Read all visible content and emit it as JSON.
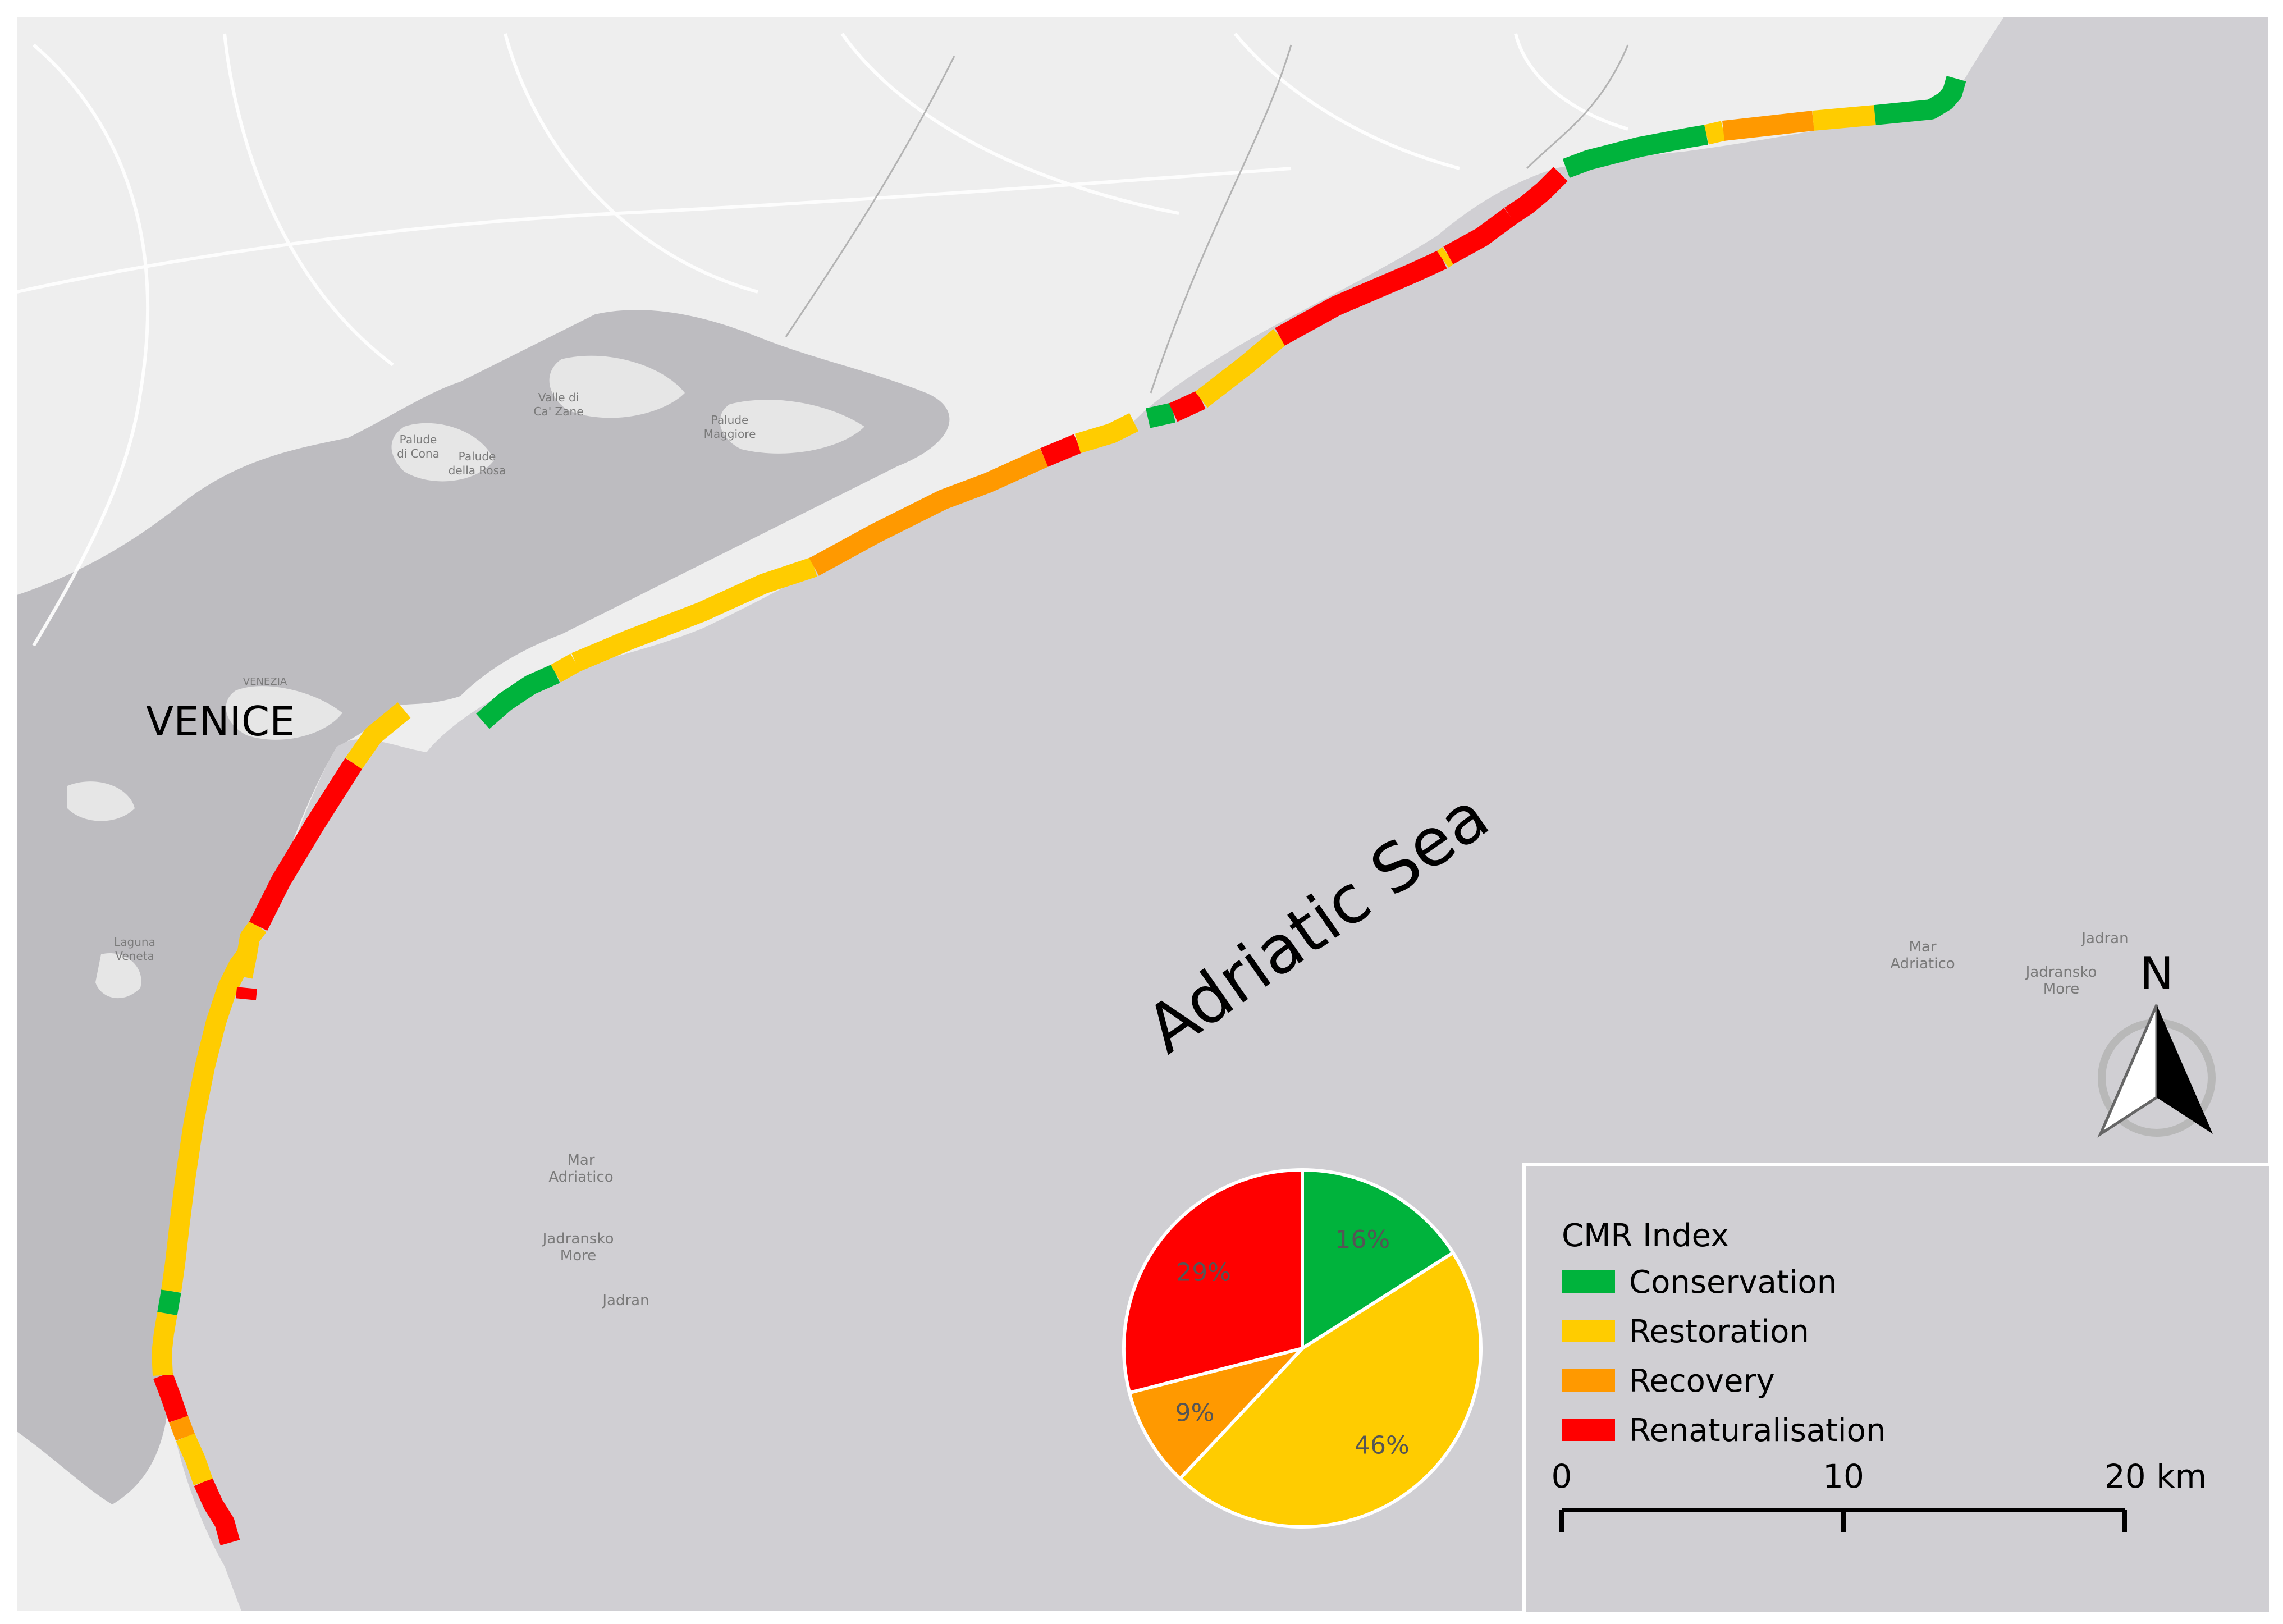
{
  "map": {
    "city_label": "VENICE",
    "sea_label": "Adriatic Sea",
    "north_label": "N",
    "place_labels": [
      {
        "text": "Mar"
      },
      {
        "text": "Adriatico"
      },
      {
        "text": "Jadransko"
      },
      {
        "text": "More"
      },
      {
        "text": "Jadran"
      },
      {
        "text": "Mar"
      },
      {
        "text": "Adriatico"
      },
      {
        "text": "Jadransko"
      },
      {
        "text": "More"
      },
      {
        "text": "Jadran"
      },
      {
        "text": "VENEZIA"
      },
      {
        "text": "Valle di"
      },
      {
        "text": "Ca' Zane"
      },
      {
        "text": "Palude"
      },
      {
        "text": "Maggiore"
      },
      {
        "text": "Palude"
      },
      {
        "text": "di Cona"
      },
      {
        "text": "Palude"
      },
      {
        "text": "della Rosa"
      },
      {
        "text": "Laguna"
      },
      {
        "text": "Veneta"
      }
    ]
  },
  "colors": {
    "sea": "#d0cfd3",
    "land": "#eeeeee",
    "lagoon": "#bdbcc0",
    "conservation": "#00b33c",
    "restoration": "#ffcc00",
    "recovery": "#ff9900",
    "renaturalisation": "#ff0000"
  },
  "legend": {
    "title": "CMR Index",
    "items": [
      {
        "label": "Conservation",
        "color": "#00b33c"
      },
      {
        "label": "Restoration",
        "color": "#ffcc00"
      },
      {
        "label": "Recovery",
        "color": "#ff9900"
      },
      {
        "label": "Renaturalisation",
        "color": "#ff0000"
      }
    ]
  },
  "scale_bar": {
    "labels": [
      "0",
      "10",
      "20 km"
    ]
  },
  "chart_data": {
    "type": "pie",
    "slices": [
      {
        "label": "Conservation",
        "value": 16,
        "display": "16%",
        "color": "#00b33c"
      },
      {
        "label": "Restoration",
        "value": 46,
        "display": "46%",
        "color": "#ffcc00"
      },
      {
        "label": "Recovery",
        "value": 9,
        "display": "9%",
        "color": "#ff9900"
      },
      {
        "label": "Renaturalisation",
        "value": 29,
        "display": "29%",
        "color": "#ff0000"
      }
    ]
  },
  "coast_segments": [
    {
      "class": "renaturalisation"
    },
    {
      "class": "restoration"
    },
    {
      "class": "recovery"
    },
    {
      "class": "renaturalisation"
    },
    {
      "class": "restoration"
    },
    {
      "class": "conservation"
    },
    {
      "class": "restoration"
    },
    {
      "class": "renaturalisation"
    },
    {
      "class": "restoration"
    },
    {
      "class": "renaturalisation"
    },
    {
      "class": "restoration"
    },
    {
      "class": "conservation"
    },
    {
      "class": "restoration"
    },
    {
      "class": "restoration"
    },
    {
      "class": "recovery"
    },
    {
      "class": "renaturalisation"
    },
    {
      "class": "restoration"
    },
    {
      "class": "conservation"
    },
    {
      "class": "renaturalisation"
    },
    {
      "class": "restoration"
    },
    {
      "class": "renaturalisation"
    },
    {
      "class": "restoration"
    },
    {
      "class": "renaturalisation"
    },
    {
      "class": "renaturalisation"
    },
    {
      "class": "conservation"
    },
    {
      "class": "restoration"
    },
    {
      "class": "recovery"
    },
    {
      "class": "restoration"
    },
    {
      "class": "conservation"
    }
  ]
}
